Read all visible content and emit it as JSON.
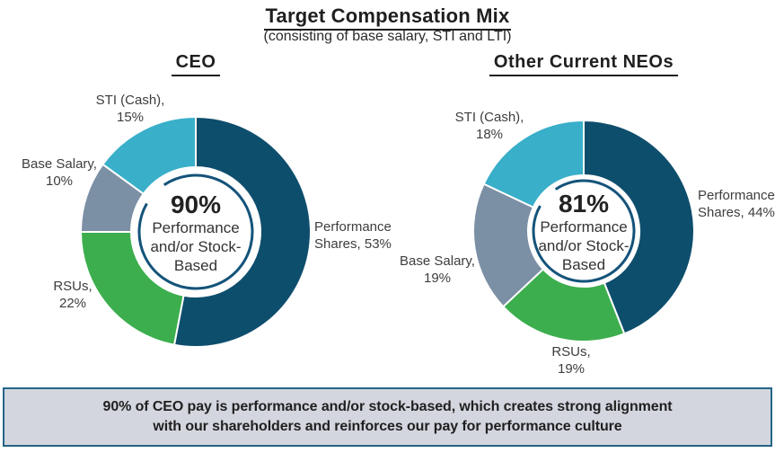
{
  "title": "Target Compensation Mix",
  "subtitle": "(consisting of base salary, STI and LTI)",
  "callout": {
    "line1": "90% of CEO pay is performance and/or stock-based, which creates strong alignment",
    "line2": "with our shareholders and reinforces our pay for performance culture"
  },
  "colors": {
    "performance_shares": "#0e4e6d",
    "rsus": "#3cae4e",
    "base_salary": "#7b8fa5",
    "sti_cash": "#39afc9",
    "center_ring": "#14537a",
    "callout_border": "#246587",
    "callout_bg": "#d4d6df"
  },
  "chart_data": [
    {
      "type": "pie",
      "donut": true,
      "title": "CEO",
      "center_value": "90%",
      "center_label_lines": [
        "Performance",
        "and/or Stock-",
        "Based"
      ],
      "segments": [
        {
          "label": "Performance Shares",
          "value": 53,
          "color": "#0e4e6d"
        },
        {
          "label": "RSUs",
          "value": 22,
          "color": "#3cae4e"
        },
        {
          "label": "Base Salary",
          "value": 10,
          "color": "#7b8fa5"
        },
        {
          "label": "STI (Cash)",
          "value": 15,
          "color": "#39afc9"
        }
      ]
    },
    {
      "type": "pie",
      "donut": true,
      "title": "Other Current NEOs",
      "center_value": "81%",
      "center_label_lines": [
        "Performance",
        "and/or Stock-",
        "Based"
      ],
      "segments": [
        {
          "label": "Performance Shares",
          "value": 44,
          "color": "#0e4e6d"
        },
        {
          "label": "RSUs",
          "value": 19,
          "color": "#3cae4e"
        },
        {
          "label": "Base Salary",
          "value": 19,
          "color": "#7b8fa5"
        },
        {
          "label": "STI (Cash)",
          "value": 18,
          "color": "#39afc9"
        }
      ]
    }
  ]
}
